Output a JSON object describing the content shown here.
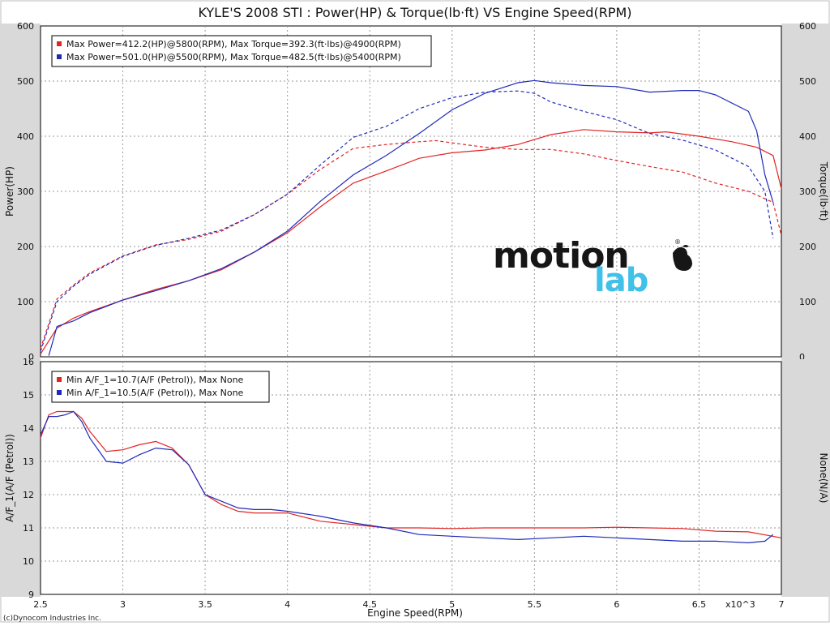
{
  "title": "KYLE'S 2008 STI : Power(HP) & Torque(lb·ft) VS Engine Speed(RPM)",
  "copyright": "(c)Dynocom Industries Inc.",
  "logo_text": "motion lab",
  "x_axis": {
    "label": "Engine Speed(RPM)",
    "multiplier": "x10^3",
    "range": [
      2.5,
      7
    ],
    "ticks": [
      "2.5",
      "3",
      "3.5",
      "4",
      "4.5",
      "5",
      "5.5",
      "6",
      "6.5",
      "7"
    ]
  },
  "colors": {
    "run1": "#e32424",
    "run2": "#1f2bb8",
    "background": "#ffffff",
    "grid": "#9a9a9a",
    "axis_band": "#d9d9d9"
  },
  "chart_data": [
    {
      "type": "line",
      "title": "KYLE'S 2008 STI : Power(HP) & Torque(lb·ft) VS Engine Speed(RPM)",
      "xlabel": "Engine Speed(RPM)",
      "ylabel": "Power(HP)",
      "ylabel_right": "Torque(lb·ft)",
      "xlim": [
        2.5,
        7
      ],
      "ylim": [
        0,
        600
      ],
      "ylim_right": [
        0,
        600
      ],
      "yticks": [
        "0",
        "100",
        "200",
        "300",
        "400",
        "500",
        "600"
      ],
      "grid": true,
      "legend_position": "top-left",
      "legend": [
        "Max Power=412.2(HP)@5800(RPM), Max Torque=392.3(ft·lbs)@4900(RPM)",
        "Max Power=501.0(HP)@5500(RPM), Max Torque=482.5(ft·lbs)@5400(RPM)"
      ],
      "series": [
        {
          "name": "Power run 1",
          "axis": "left",
          "style": "solid",
          "color": "#e32424",
          "x": [
            2.5,
            2.6,
            2.7,
            2.8,
            3.0,
            3.2,
            3.4,
            3.6,
            3.8,
            4.0,
            4.2,
            4.4,
            4.6,
            4.8,
            5.0,
            5.2,
            5.4,
            5.6,
            5.8,
            6.0,
            6.2,
            6.3,
            6.5,
            6.7,
            6.85,
            6.95,
            7.0
          ],
          "y": [
            5,
            52,
            70,
            82,
            103,
            122,
            138,
            158,
            190,
            225,
            272,
            315,
            337,
            360,
            370,
            375,
            385,
            403,
            412,
            408,
            406,
            408,
            400,
            390,
            380,
            365,
            305
          ]
        },
        {
          "name": "Torque run 1",
          "axis": "right",
          "style": "dashed",
          "color": "#e32424",
          "x": [
            2.5,
            2.6,
            2.7,
            2.8,
            3.0,
            3.2,
            3.4,
            3.6,
            3.8,
            4.0,
            4.2,
            4.4,
            4.6,
            4.8,
            4.9,
            5.0,
            5.2,
            5.4,
            5.6,
            5.8,
            6.0,
            6.2,
            6.4,
            6.6,
            6.8,
            6.95,
            7.0
          ],
          "y": [
            15,
            105,
            130,
            152,
            183,
            203,
            213,
            228,
            258,
            295,
            340,
            378,
            385,
            390,
            392,
            388,
            380,
            376,
            376,
            368,
            356,
            345,
            335,
            315,
            300,
            280,
            220
          ]
        },
        {
          "name": "Power run 2",
          "axis": "left",
          "style": "solid",
          "color": "#1f2bb8",
          "x": [
            2.55,
            2.6,
            2.7,
            2.8,
            3.0,
            3.2,
            3.4,
            3.6,
            3.8,
            4.0,
            4.2,
            4.4,
            4.6,
            4.8,
            5.0,
            5.2,
            5.4,
            5.5,
            5.6,
            5.8,
            6.0,
            6.2,
            6.4,
            6.5,
            6.6,
            6.8,
            6.85,
            6.9,
            6.95
          ],
          "y": [
            2,
            55,
            65,
            80,
            103,
            120,
            138,
            160,
            190,
            228,
            282,
            330,
            365,
            405,
            448,
            478,
            497,
            501,
            497,
            492,
            490,
            480,
            483,
            483,
            475,
            445,
            410,
            330,
            280
          ]
        },
        {
          "name": "Torque run 2",
          "axis": "right",
          "style": "dashed",
          "color": "#1f2bb8",
          "x": [
            2.5,
            2.6,
            2.7,
            2.8,
            3.0,
            3.2,
            3.4,
            3.6,
            3.8,
            4.0,
            4.2,
            4.4,
            4.6,
            4.8,
            5.0,
            5.2,
            5.4,
            5.5,
            5.6,
            5.8,
            6.0,
            6.2,
            6.4,
            6.6,
            6.8,
            6.9,
            6.95
          ],
          "y": [
            10,
            100,
            128,
            150,
            182,
            202,
            215,
            230,
            258,
            295,
            348,
            398,
            418,
            450,
            470,
            480,
            482,
            478,
            462,
            445,
            430,
            405,
            393,
            375,
            345,
            300,
            215
          ]
        }
      ]
    },
    {
      "type": "line",
      "xlabel": "Engine Speed(RPM)",
      "ylabel": "A/F_1(A/F (Petrol))",
      "ylabel_right": "None(N/A)",
      "xlim": [
        2.5,
        7
      ],
      "ylim": [
        9,
        16
      ],
      "yticks": [
        "9",
        "10",
        "11",
        "12",
        "13",
        "14",
        "15",
        "16"
      ],
      "grid": true,
      "legend_position": "top-left",
      "legend": [
        "Min A/F_1=10.7(A/F (Petrol)), Max None",
        "Min A/F_1=10.5(A/F (Petrol)), Max None"
      ],
      "series": [
        {
          "name": "A/F run 1",
          "color": "#e32424",
          "x": [
            2.5,
            2.55,
            2.6,
            2.7,
            2.75,
            2.8,
            2.9,
            3.0,
            3.1,
            3.2,
            3.3,
            3.4,
            3.5,
            3.6,
            3.7,
            3.8,
            4.0,
            4.2,
            4.4,
            4.6,
            4.8,
            5.0,
            5.2,
            5.4,
            5.6,
            5.8,
            6.0,
            6.2,
            6.4,
            6.6,
            6.8,
            7.0
          ],
          "y": [
            13.7,
            14.4,
            14.5,
            14.5,
            14.3,
            13.9,
            13.3,
            13.35,
            13.5,
            13.6,
            13.4,
            12.9,
            12.0,
            11.7,
            11.5,
            11.45,
            11.45,
            11.2,
            11.1,
            11.0,
            11.0,
            10.98,
            11.0,
            11.0,
            11.0,
            11.0,
            11.02,
            11.0,
            10.98,
            10.9,
            10.88,
            10.7
          ]
        },
        {
          "name": "A/F run 2",
          "color": "#1f2bb8",
          "x": [
            2.5,
            2.55,
            2.6,
            2.65,
            2.7,
            2.75,
            2.8,
            2.9,
            3.0,
            3.1,
            3.2,
            3.3,
            3.4,
            3.5,
            3.6,
            3.7,
            3.8,
            3.9,
            4.0,
            4.2,
            4.4,
            4.6,
            4.8,
            5.0,
            5.2,
            5.4,
            5.6,
            5.8,
            6.0,
            6.2,
            6.4,
            6.6,
            6.8,
            6.9,
            6.95
          ],
          "y": [
            13.8,
            14.35,
            14.35,
            14.4,
            14.5,
            14.2,
            13.7,
            13.0,
            12.95,
            13.2,
            13.4,
            13.35,
            12.9,
            12.0,
            11.8,
            11.6,
            11.55,
            11.55,
            11.5,
            11.35,
            11.15,
            11.0,
            10.8,
            10.75,
            10.7,
            10.65,
            10.7,
            10.75,
            10.7,
            10.65,
            10.6,
            10.6,
            10.55,
            10.6,
            10.8
          ]
        }
      ]
    }
  ]
}
